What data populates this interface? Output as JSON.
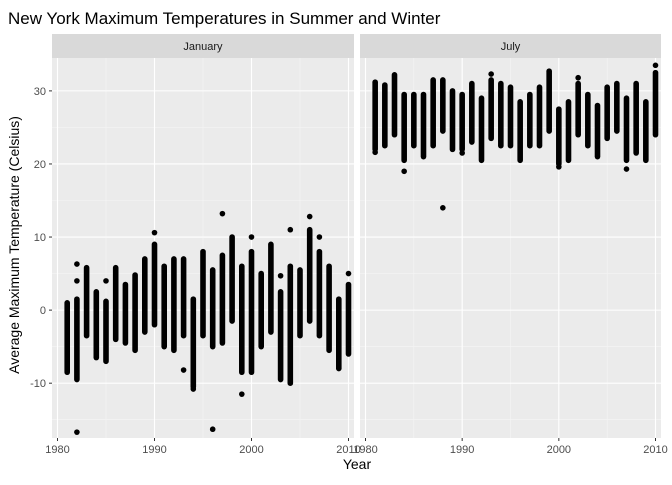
{
  "chart_data": {
    "type": "scatter",
    "title": "New York Maximum Temperatures in Summer and Winter",
    "xlabel": "Year",
    "ylabel": "Average Maximum Temperature (Celsius)",
    "xlim": [
      1980,
      2010
    ],
    "ylim": [
      -17.5,
      34.5
    ],
    "xticks": [
      1980,
      1990,
      2000,
      2010
    ],
    "yticks": [
      -10,
      0,
      10,
      20,
      30
    ],
    "grid": true,
    "legend": "none",
    "panels": [
      {
        "label": "January",
        "columns": [
          {
            "year": 1981,
            "low": -8.5,
            "high": 1.0,
            "outliers": []
          },
          {
            "year": 1982,
            "low": -9.5,
            "high": 1.5,
            "outliers": [
              -16.7,
              4.0,
              6.3
            ]
          },
          {
            "year": 1983,
            "low": -3.5,
            "high": 5.8,
            "outliers": []
          },
          {
            "year": 1984,
            "low": -6.5,
            "high": 2.5,
            "outliers": []
          },
          {
            "year": 1985,
            "low": -7.0,
            "high": 1.2,
            "outliers": [
              4.0
            ]
          },
          {
            "year": 1986,
            "low": -4.0,
            "high": 5.8,
            "outliers": []
          },
          {
            "year": 1987,
            "low": -4.5,
            "high": 3.5,
            "outliers": []
          },
          {
            "year": 1988,
            "low": -5.5,
            "high": 4.8,
            "outliers": []
          },
          {
            "year": 1989,
            "low": -3.0,
            "high": 7.0,
            "outliers": []
          },
          {
            "year": 1990,
            "low": -2.0,
            "high": 9.0,
            "outliers": [
              10.6
            ]
          },
          {
            "year": 1991,
            "low": -5.0,
            "high": 6.0,
            "outliers": []
          },
          {
            "year": 1992,
            "low": -5.5,
            "high": 7.0,
            "outliers": []
          },
          {
            "year": 1993,
            "low": -3.5,
            "high": 7.0,
            "outliers": [
              -8.2
            ]
          },
          {
            "year": 1994,
            "low": -10.5,
            "high": 1.5,
            "outliers": [
              -10.8
            ]
          },
          {
            "year": 1995,
            "low": -3.5,
            "high": 8.0,
            "outliers": []
          },
          {
            "year": 1996,
            "low": -5.0,
            "high": 5.5,
            "outliers": [
              -16.3
            ]
          },
          {
            "year": 1997,
            "low": -4.5,
            "high": 7.5,
            "outliers": [
              13.2
            ]
          },
          {
            "year": 1998,
            "low": -1.5,
            "high": 10.0,
            "outliers": []
          },
          {
            "year": 1999,
            "low": -8.5,
            "high": 6.0,
            "outliers": [
              -11.5
            ]
          },
          {
            "year": 2000,
            "low": -8.5,
            "high": 8.0,
            "outliers": [
              10.0
            ]
          },
          {
            "year": 2001,
            "low": -5.0,
            "high": 5.0,
            "outliers": []
          },
          {
            "year": 2002,
            "low": -3.0,
            "high": 9.0,
            "outliers": []
          },
          {
            "year": 2003,
            "low": -9.5,
            "high": 2.5,
            "outliers": [
              4.7
            ]
          },
          {
            "year": 2004,
            "low": -10.0,
            "high": 6.0,
            "outliers": [
              11.0
            ]
          },
          {
            "year": 2005,
            "low": -3.5,
            "high": 5.5,
            "outliers": []
          },
          {
            "year": 2006,
            "low": -1.5,
            "high": 11.0,
            "outliers": [
              12.8
            ]
          },
          {
            "year": 2007,
            "low": -3.5,
            "high": 8.0,
            "outliers": [
              10.0
            ]
          },
          {
            "year": 2008,
            "low": -5.5,
            "high": 6.0,
            "outliers": []
          },
          {
            "year": 2009,
            "low": -8.0,
            "high": 1.5,
            "outliers": []
          },
          {
            "year": 2010,
            "low": -6.0,
            "high": 3.5,
            "outliers": [
              5.0
            ]
          }
        ]
      },
      {
        "label": "July",
        "columns": [
          {
            "year": 1981,
            "low": 22.0,
            "high": 31.2,
            "outliers": [
              21.6
            ]
          },
          {
            "year": 1982,
            "low": 22.5,
            "high": 30.8,
            "outliers": []
          },
          {
            "year": 1983,
            "low": 24.0,
            "high": 32.2,
            "outliers": []
          },
          {
            "year": 1984,
            "low": 20.5,
            "high": 29.5,
            "outliers": [
              19.0
            ]
          },
          {
            "year": 1985,
            "low": 22.5,
            "high": 29.5,
            "outliers": []
          },
          {
            "year": 1986,
            "low": 21.0,
            "high": 29.5,
            "outliers": []
          },
          {
            "year": 1987,
            "low": 22.5,
            "high": 31.5,
            "outliers": []
          },
          {
            "year": 1988,
            "low": 24.5,
            "high": 31.5,
            "outliers": [
              14.0
            ]
          },
          {
            "year": 1989,
            "low": 22.0,
            "high": 30.0,
            "outliers": []
          },
          {
            "year": 1990,
            "low": 22.0,
            "high": 29.5,
            "outliers": [
              21.5
            ]
          },
          {
            "year": 1991,
            "low": 23.0,
            "high": 31.0,
            "outliers": []
          },
          {
            "year": 1992,
            "low": 20.5,
            "high": 29.0,
            "outliers": []
          },
          {
            "year": 1993,
            "low": 23.5,
            "high": 31.5,
            "outliers": [
              32.3
            ]
          },
          {
            "year": 1994,
            "low": 22.5,
            "high": 31.0,
            "outliers": []
          },
          {
            "year": 1995,
            "low": 22.5,
            "high": 30.5,
            "outliers": []
          },
          {
            "year": 1996,
            "low": 20.5,
            "high": 28.5,
            "outliers": []
          },
          {
            "year": 1997,
            "low": 22.5,
            "high": 29.5,
            "outliers": []
          },
          {
            "year": 1998,
            "low": 22.5,
            "high": 30.5,
            "outliers": []
          },
          {
            "year": 1999,
            "low": 24.5,
            "high": 32.7,
            "outliers": []
          },
          {
            "year": 2000,
            "low": 20.0,
            "high": 27.5,
            "outliers": [
              19.6
            ]
          },
          {
            "year": 2001,
            "low": 20.5,
            "high": 28.5,
            "outliers": []
          },
          {
            "year": 2002,
            "low": 24.0,
            "high": 31.0,
            "outliers": [
              31.8
            ]
          },
          {
            "year": 2003,
            "low": 22.5,
            "high": 29.5,
            "outliers": []
          },
          {
            "year": 2004,
            "low": 21.0,
            "high": 28.0,
            "outliers": []
          },
          {
            "year": 2005,
            "low": 23.5,
            "high": 30.5,
            "outliers": []
          },
          {
            "year": 2006,
            "low": 24.5,
            "high": 31.0,
            "outliers": []
          },
          {
            "year": 2007,
            "low": 20.5,
            "high": 29.0,
            "outliers": [
              19.3
            ]
          },
          {
            "year": 2008,
            "low": 21.5,
            "high": 31.0,
            "outliers": []
          },
          {
            "year": 2009,
            "low": 20.5,
            "high": 28.5,
            "outliers": []
          },
          {
            "year": 2010,
            "low": 24.0,
            "high": 32.5,
            "outliers": [
              33.5
            ]
          }
        ]
      }
    ]
  }
}
